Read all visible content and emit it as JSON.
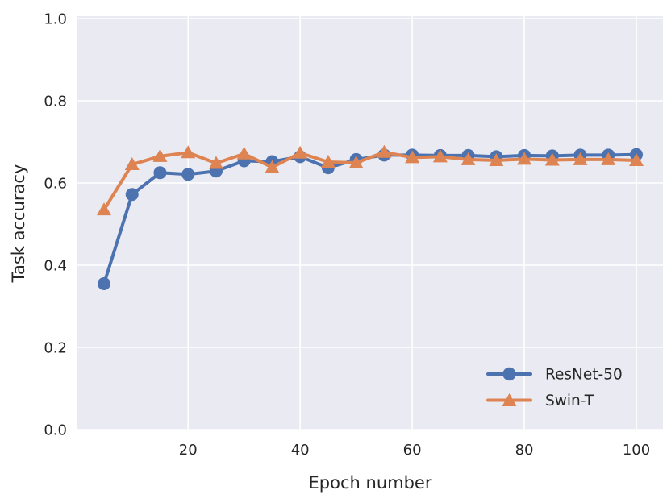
{
  "chart_data": {
    "type": "line",
    "title": "",
    "xlabel": "Epoch number",
    "ylabel": "Task accuracy",
    "x": [
      5,
      10,
      15,
      20,
      25,
      30,
      35,
      40,
      45,
      50,
      55,
      60,
      65,
      70,
      75,
      80,
      85,
      90,
      95,
      100
    ],
    "series": [
      {
        "name": "ResNet-50",
        "color": "#4C72B0",
        "marker": "circle",
        "values": [
          0.355,
          0.572,
          0.625,
          0.621,
          0.629,
          0.654,
          0.652,
          0.664,
          0.637,
          0.657,
          0.668,
          0.668,
          0.667,
          0.667,
          0.664,
          0.667,
          0.666,
          0.668,
          0.668,
          0.669
        ]
      },
      {
        "name": "Swin-T",
        "color": "#DD8452",
        "marker": "triangle-up",
        "values": [
          0.535,
          0.645,
          0.665,
          0.674,
          0.648,
          0.671,
          0.638,
          0.673,
          0.651,
          0.649,
          0.675,
          0.662,
          0.664,
          0.657,
          0.655,
          0.658,
          0.656,
          0.657,
          0.657,
          0.655
        ]
      }
    ],
    "xtick_labels": [
      "20",
      "40",
      "60",
      "80",
      "100"
    ],
    "xtick_values": [
      20,
      40,
      60,
      80,
      100
    ],
    "ytick_labels": [
      "0.0",
      "0.2",
      "0.4",
      "0.6",
      "0.8",
      "1.0"
    ],
    "ytick_values": [
      0,
      0.2,
      0.4,
      0.6,
      0.8,
      1.0
    ],
    "xlim": [
      0.25,
      104.75
    ],
    "ylim": [
      0.0,
      1.0
    ],
    "grid": true,
    "legend_position": "lower right",
    "plot_bg_color": "#EAEAF2",
    "grid_color": "#FFFFFF",
    "text_color": "#262626",
    "line_width": 4,
    "marker_size": 8
  }
}
